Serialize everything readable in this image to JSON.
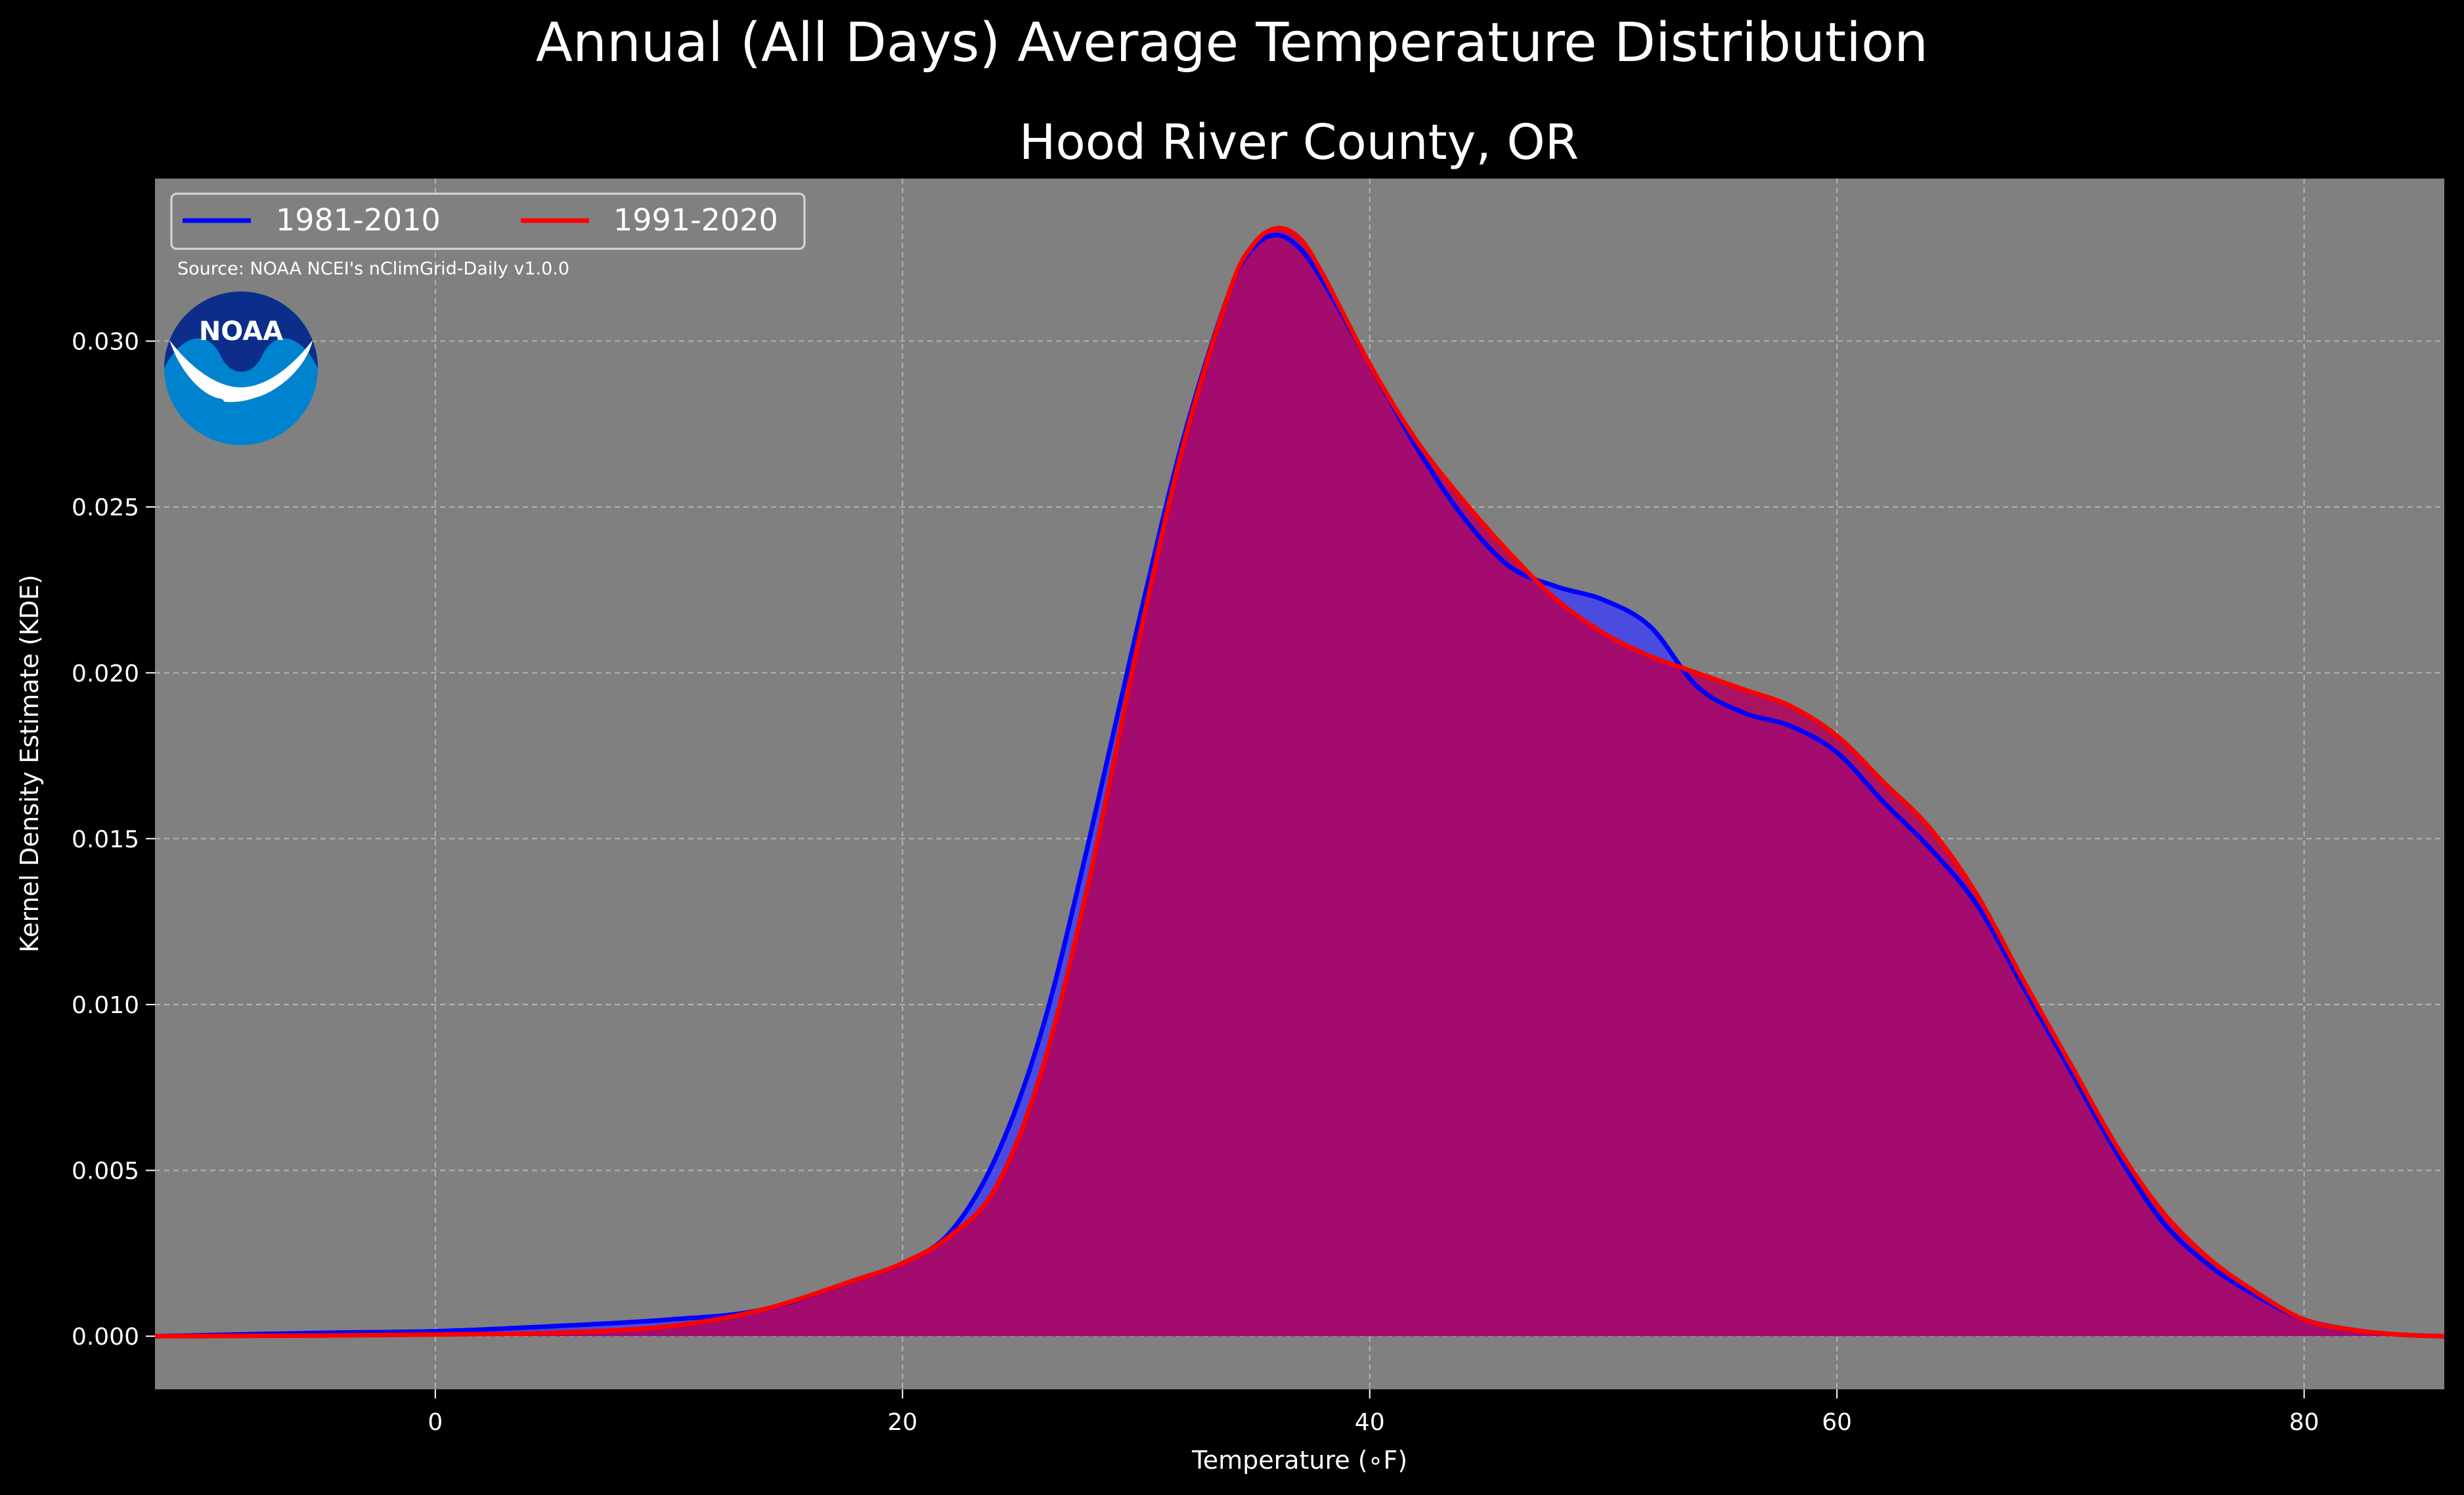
{
  "chart_data": {
    "type": "area",
    "suptitle": "Annual (All Days) Average Temperature Distribution",
    "title": "Hood River County, OR",
    "xlabel": "Temperature (∘F)",
    "ylabel": "Kernel Density Estimate (KDE)",
    "xlim": [
      -12,
      86
    ],
    "ylim": [
      -0.0016,
      0.0349
    ],
    "xticks": [
      0,
      20,
      40,
      60,
      80
    ],
    "yticks": [
      0.0,
      0.005,
      0.01,
      0.015,
      0.02,
      0.025,
      0.03
    ],
    "ytick_labels": [
      "0.000",
      "0.005",
      "0.010",
      "0.015",
      "0.020",
      "0.025",
      "0.030"
    ],
    "grid": true,
    "legend_position": "top-left",
    "source_text": "Source: NOAA NCEI's nClimGrid-Daily v1.0.0",
    "logo_text": "NOAA",
    "colors": {
      "background": "#000000",
      "axes_bg": "#808080",
      "blue": "#0000ff",
      "red": "#ff0000",
      "fill_red": "#b3005a",
      "fill_blue": "#3a3aff"
    },
    "series": [
      {
        "name": "1981-2010",
        "color": "#0000ff",
        "x": [
          -12,
          -5,
          0,
          5,
          10,
          14,
          18,
          20,
          22,
          24,
          26,
          28,
          30,
          32,
          34,
          35,
          36,
          37,
          38,
          40,
          42,
          44,
          46,
          48,
          50,
          52,
          54,
          56,
          58,
          60,
          62,
          64,
          66,
          68,
          70,
          72,
          74,
          76,
          78,
          80,
          82,
          84,
          86
        ],
        "y": [
          0.0,
          0.0001,
          0.00015,
          0.0003,
          0.0005,
          0.0008,
          0.0017,
          0.0022,
          0.0031,
          0.0054,
          0.0093,
          0.015,
          0.0212,
          0.027,
          0.0315,
          0.0328,
          0.0332,
          0.0328,
          0.0318,
          0.0293,
          0.0268,
          0.0247,
          0.0232,
          0.0226,
          0.0222,
          0.0214,
          0.0196,
          0.0188,
          0.0184,
          0.0176,
          0.0161,
          0.0147,
          0.013,
          0.0105,
          0.008,
          0.0055,
          0.0034,
          0.0021,
          0.0012,
          0.0005,
          0.0002,
          5e-05,
          0.0
        ]
      },
      {
        "name": "1991-2020",
        "color": "#ff0000",
        "x": [
          -12,
          -5,
          0,
          5,
          10,
          14,
          18,
          20,
          22,
          24,
          26,
          28,
          30,
          32,
          34,
          35,
          36,
          37,
          38,
          40,
          42,
          44,
          46,
          48,
          50,
          52,
          54,
          56,
          58,
          60,
          62,
          64,
          66,
          68,
          70,
          72,
          74,
          76,
          78,
          80,
          82,
          84,
          86
        ],
        "y": [
          0.0,
          2e-05,
          5e-05,
          0.0001,
          0.0003,
          0.0008,
          0.0017,
          0.0022,
          0.003,
          0.0045,
          0.0081,
          0.0138,
          0.0206,
          0.0268,
          0.0315,
          0.0329,
          0.0334,
          0.0331,
          0.032,
          0.0293,
          0.027,
          0.0252,
          0.0236,
          0.0222,
          0.0212,
          0.0205,
          0.02,
          0.0195,
          0.019,
          0.0181,
          0.0167,
          0.0153,
          0.0133,
          0.0107,
          0.0082,
          0.0057,
          0.0037,
          0.0023,
          0.0013,
          0.0005,
          0.0002,
          5e-05,
          0.0
        ]
      }
    ]
  }
}
